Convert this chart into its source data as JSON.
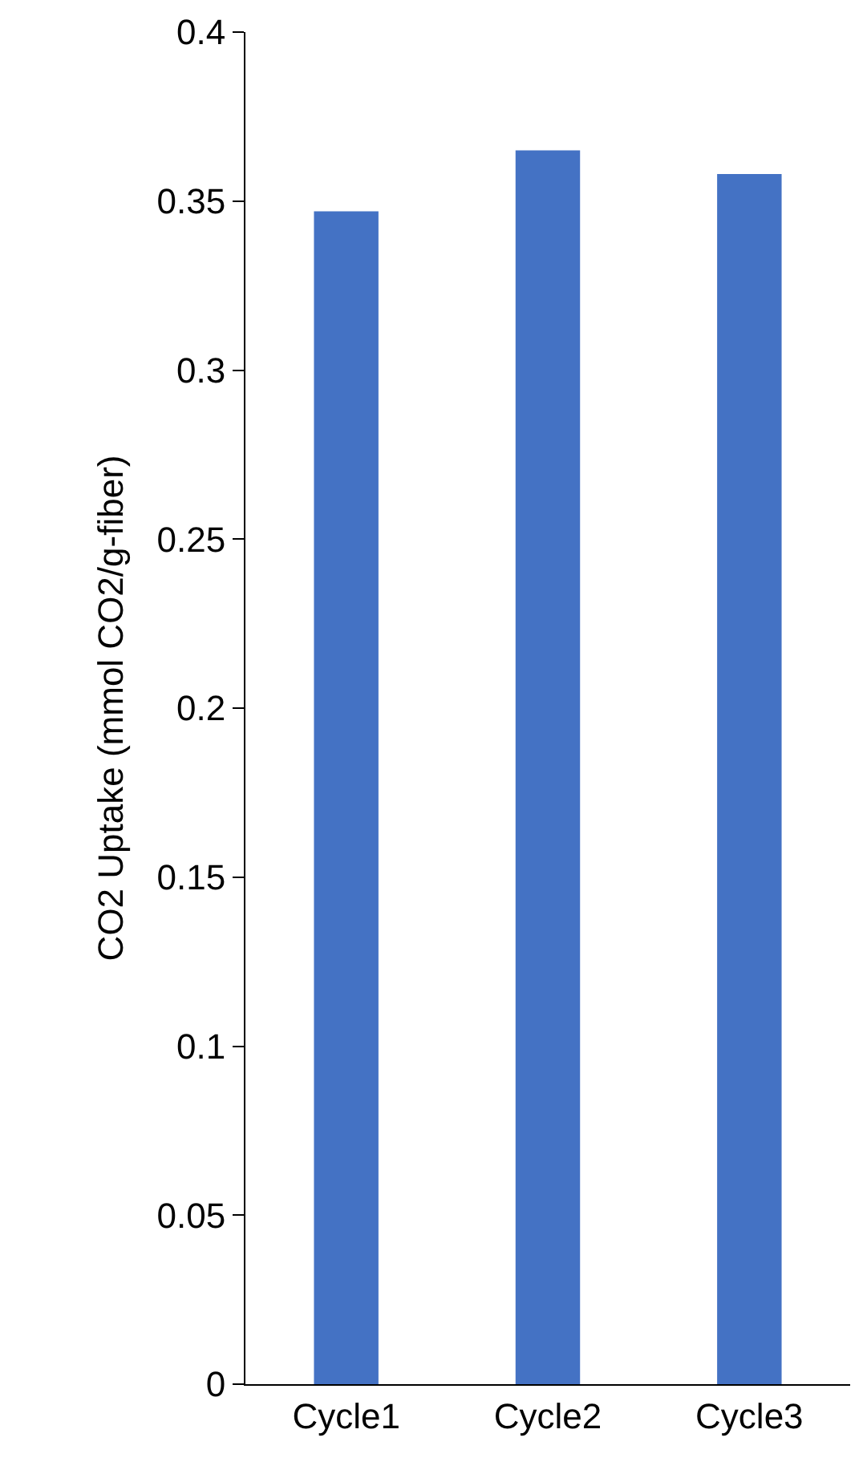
{
  "chart_data": {
    "type": "bar",
    "ylabel": "CO2 Uptake (mmol CO2/g-fiber)",
    "categories": [
      "Cycle1",
      "Cycle2",
      "Cycle3"
    ],
    "values": [
      0.347,
      0.365,
      0.358
    ],
    "color": "#4472c4",
    "ylim": [
      0,
      0.4
    ],
    "yticks": [
      0,
      0.05,
      0.1,
      0.15,
      0.2,
      0.25,
      0.3,
      0.35,
      0.4
    ]
  }
}
